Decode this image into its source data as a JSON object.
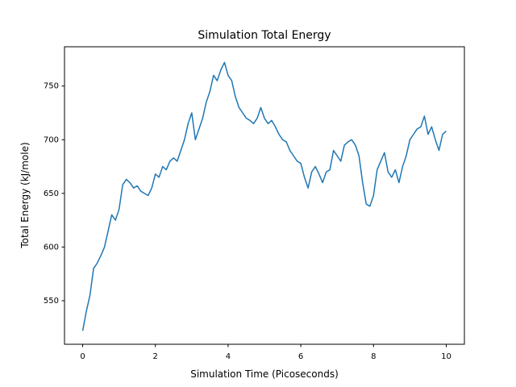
{
  "chart_data": {
    "type": "line",
    "title": "Simulation Total Energy",
    "x_label": "Simulation Time (Picoseconds)",
    "y_label": "Total Energy (kJ/mole)",
    "x": [
      0,
      0.1,
      0.2,
      0.3,
      0.4,
      0.5,
      0.6,
      0.7,
      0.8,
      0.9,
      1,
      1.1,
      1.2,
      1.3,
      1.4,
      1.5,
      1.6,
      1.7,
      1.8,
      1.9,
      2,
      2.1,
      2.2,
      2.3,
      2.4,
      2.5,
      2.6,
      2.7,
      2.8,
      2.9,
      3,
      3.1,
      3.2,
      3.3,
      3.4,
      3.5,
      3.6,
      3.7,
      3.8,
      3.9,
      4,
      4.1,
      4.2,
      4.3,
      4.4,
      4.5,
      4.6,
      4.7,
      4.8,
      4.9,
      5,
      5.1,
      5.2,
      5.3,
      5.4,
      5.5,
      5.6,
      5.7,
      5.8,
      5.9,
      6,
      6.1,
      6.2,
      6.3,
      6.4,
      6.5,
      6.6,
      6.7,
      6.8,
      6.9,
      7,
      7.1,
      7.2,
      7.3,
      7.4,
      7.5,
      7.6,
      7.7,
      7.8,
      7.9,
      8,
      8.1,
      8.2,
      8.3,
      8.4,
      8.5,
      8.6,
      8.7,
      8.8,
      8.9,
      9,
      9.1,
      9.2,
      9.3,
      9.4,
      9.5,
      9.6,
      9.7,
      9.8,
      9.9,
      10
    ],
    "series": [
      {
        "color": "#1f77b4",
        "values": [
          522,
          540,
          555,
          580,
          585,
          592,
          600,
          615,
          630,
          625,
          635,
          658,
          663,
          660,
          655,
          657,
          652,
          650,
          648,
          655,
          668,
          665,
          675,
          672,
          680,
          683,
          680,
          690,
          700,
          715,
          725,
          700,
          710,
          720,
          735,
          745,
          760,
          755,
          765,
          772,
          760,
          755,
          740,
          730,
          725,
          720,
          718,
          715,
          720,
          730,
          720,
          715,
          718,
          712,
          705,
          700,
          698,
          690,
          685,
          680,
          678,
          665,
          655,
          670,
          675,
          668,
          660,
          670,
          672,
          690,
          685,
          680,
          695,
          698,
          700,
          695,
          685,
          660,
          640,
          638,
          648,
          672,
          680,
          688,
          670,
          665,
          672,
          660,
          675,
          685,
          700,
          705,
          710,
          712,
          722,
          705,
          712,
          700,
          690,
          705,
          708
        ]
      }
    ],
    "xlim": [
      -0.5,
      10.5
    ],
    "xticks": [
      0,
      2,
      4,
      6,
      8,
      10
    ],
    "ylim": [
      509.4,
      786.6
    ],
    "yticks": [
      550,
      600,
      650,
      700,
      750
    ]
  }
}
